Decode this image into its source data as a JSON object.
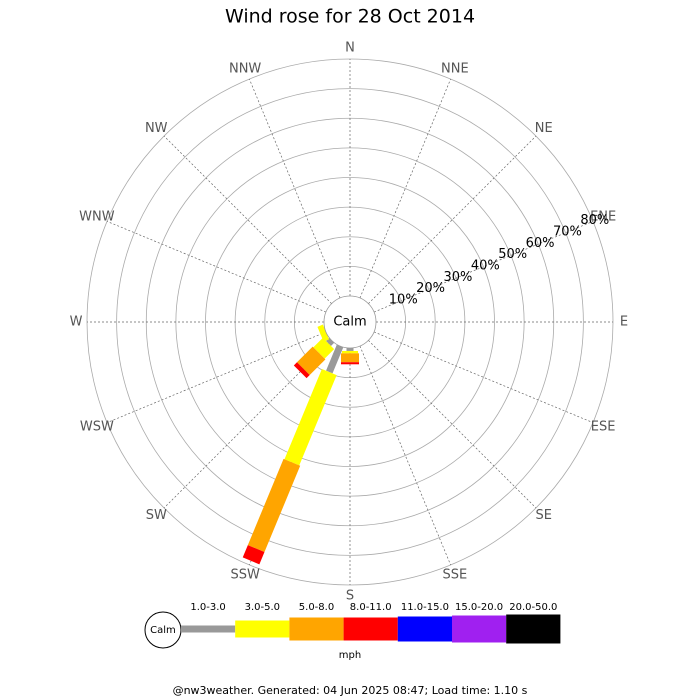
{
  "chart_data": {
    "type": "windrose",
    "title": "Wind rose for 28 Oct 2014",
    "center_label": "Calm",
    "categories": [
      "N",
      "NNE",
      "NE",
      "ENE",
      "E",
      "ESE",
      "SE",
      "SSE",
      "S",
      "SSW",
      "SW",
      "WSW",
      "W",
      "WNW",
      "NW",
      "NNW"
    ],
    "series": [
      {
        "name": "1.0-3.0",
        "color": "#999999",
        "values": [
          0,
          0,
          0,
          0,
          0,
          0,
          0,
          0,
          1,
          9.5,
          1.5,
          0,
          0,
          0,
          0,
          0
        ]
      },
      {
        "name": "3.0-5.0",
        "color": "#ffff00",
        "values": [
          0,
          0,
          0,
          0,
          0,
          0,
          0,
          0,
          0.8,
          33,
          4.5,
          2,
          0,
          0,
          0,
          0
        ]
      },
      {
        "name": "5.0-8.0",
        "color": "#ffa500",
        "values": [
          0,
          0,
          0,
          0,
          0,
          0,
          0,
          0,
          3,
          31.5,
          7.5,
          0,
          0,
          0,
          0,
          0
        ]
      },
      {
        "name": "8.0-11.0",
        "color": "#ff0000",
        "values": [
          0,
          0,
          0,
          0,
          0,
          0,
          0,
          0,
          0.7,
          4.5,
          1.5,
          0,
          0,
          0,
          0,
          0
        ]
      },
      {
        "name": "11.0-15.0",
        "color": "#0000ff",
        "values": [
          0,
          0,
          0,
          0,
          0,
          0,
          0,
          0,
          0,
          0,
          0,
          0,
          0,
          0,
          0,
          0
        ]
      },
      {
        "name": "15.0-20.0",
        "color": "#a020f0",
        "values": [
          0,
          0,
          0,
          0,
          0,
          0,
          0,
          0,
          0,
          0,
          0,
          0,
          0,
          0,
          0,
          0
        ]
      },
      {
        "name": "20.0-50.0",
        "color": "#000000",
        "values": [
          0,
          0,
          0,
          0,
          0,
          0,
          0,
          0,
          0,
          0,
          0,
          0,
          0,
          0,
          0,
          0
        ]
      }
    ],
    "ylim": [
      0,
      80
    ],
    "yticks": [
      {
        "value": 10,
        "label": "10%"
      },
      {
        "value": 20,
        "label": "20%"
      },
      {
        "value": 30,
        "label": "30%"
      },
      {
        "value": 40,
        "label": "40%"
      },
      {
        "value": 50,
        "label": "50%"
      },
      {
        "value": 60,
        "label": "60%"
      },
      {
        "value": 70,
        "label": "70%"
      },
      {
        "value": 80,
        "label": "80%"
      }
    ],
    "legend_unit": "mph",
    "footer": "@nw3weather. Generated: 04 Jun 2025 08:47; Load time: 1.10 s"
  }
}
